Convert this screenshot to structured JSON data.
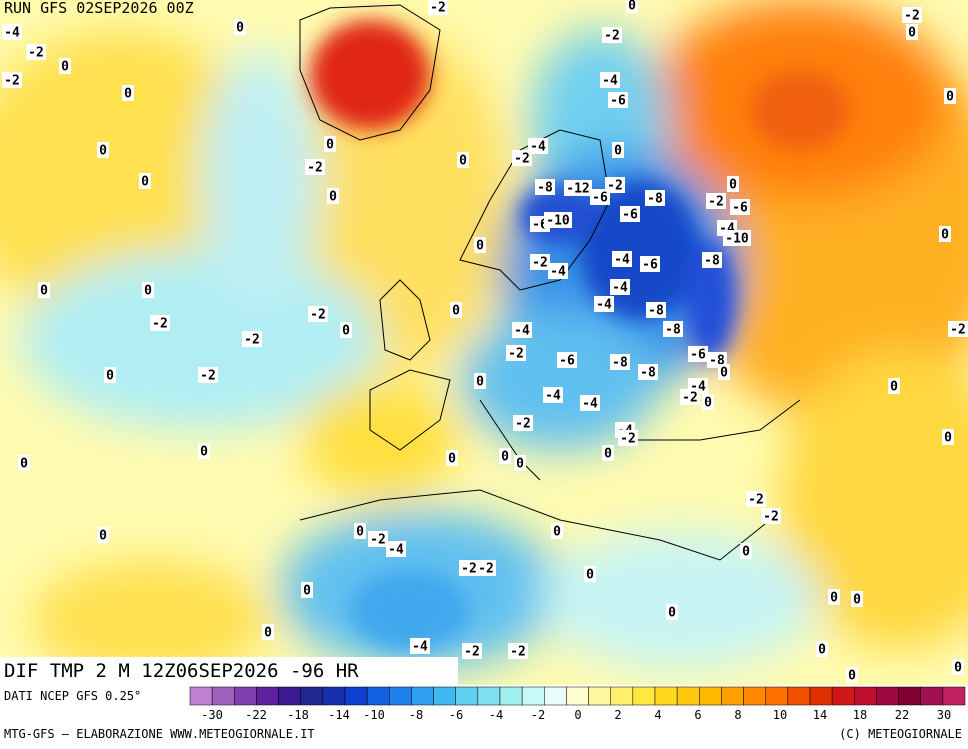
{
  "header": {
    "run": "RUN GFS 02SEP2026 00Z"
  },
  "map": {
    "contour_labels": [
      -4,
      -2,
      0,
      -2,
      0,
      0,
      0,
      0,
      0,
      -2,
      0,
      0,
      0,
      0,
      -2,
      -2,
      -2,
      0,
      -2,
      0,
      0,
      0,
      0,
      0,
      0,
      -2,
      -4,
      -6,
      0,
      -4,
      -2,
      -8,
      -12,
      -2,
      -6,
      -6,
      -10,
      -6,
      -8,
      -2,
      -6,
      0,
      -4,
      -10,
      -8,
      -2,
      -4,
      -4,
      -6,
      -4,
      -4,
      -8,
      -8,
      -4,
      -2,
      -6,
      -8,
      -8,
      -6,
      -8,
      0,
      -4,
      -2,
      0,
      -4,
      -4,
      -2,
      -4,
      -2,
      0,
      0,
      0,
      0,
      0,
      0,
      -2,
      -2,
      0,
      0,
      0,
      -2,
      -4,
      -2,
      -2,
      0,
      0,
      0,
      -4,
      -2,
      -2,
      0,
      0,
      0,
      0,
      0,
      0,
      0,
      0,
      -2,
      0,
      -2,
      0,
      0,
      -2
    ]
  },
  "footer": {
    "field": "DIF TMP 2 M 12Z06SEP2026 -96 HR",
    "source": "DATI NCEP GFS 0.25°",
    "credit": "MTG-GFS — ELABORAZIONE WWW.METEOGIORNALE.IT",
    "copyright": "(C) METEOGIORNALE"
  },
  "colorbar": {
    "ticks": [
      -30,
      -22,
      -18,
      -14,
      -10,
      -8,
      -6,
      -4,
      -2,
      0,
      2,
      4,
      6,
      8,
      10,
      14,
      18,
      22,
      30
    ],
    "colors": [
      "#c080d0",
      "#a060c0",
      "#8040b0",
      "#6020a0",
      "#3a1a90",
      "#202890",
      "#1830b0",
      "#1040d0",
      "#1060e0",
      "#2080f0",
      "#30a0f0",
      "#40b8f0",
      "#60d0f0",
      "#80e0f0",
      "#a0f0f0",
      "#c8f8f8",
      "#e8fcfc",
      "#fffcd0",
      "#fff8a0",
      "#fff070",
      "#ffe840",
      "#ffd820",
      "#ffc810",
      "#ffb800",
      "#ffa000",
      "#ff8800",
      "#ff7000",
      "#f05000",
      "#e03000",
      "#d01818",
      "#c01030",
      "#a00840",
      "#800030",
      "#a01050",
      "#c02060"
    ]
  }
}
